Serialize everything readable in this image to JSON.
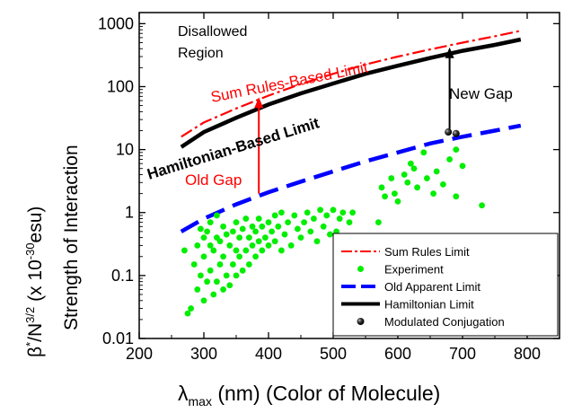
{
  "chart_data": {
    "type": "scatter",
    "xlabel_sym": "λ",
    "xlabel_sub": "max",
    "xlabel_rest": " (nm) (Color of Molecule)",
    "ylabel_line1_a": "β",
    "ylabel_line1_sup1": "*",
    "ylabel_line1_b": "/N",
    "ylabel_line1_sup2": "3/2",
    "ylabel_line1_c": " (x 10",
    "ylabel_line1_sup3": "-30",
    "ylabel_line1_d": "esu)",
    "ylabel_line2": "Strength of Interaction",
    "x_ticks": [
      "200",
      "300",
      "400",
      "500",
      "600",
      "700",
      "800"
    ],
    "y_ticks": [
      "0.01",
      "0.1",
      "1",
      "10",
      "100",
      "1000"
    ],
    "xlim": [
      200,
      850
    ],
    "ylim": [
      0.01,
      1500
    ],
    "y_scale": "log",
    "annotations": {
      "disallowed_1": "Disallowed",
      "disallowed_2": "Region",
      "sum_rules_limit": "Sum Rules-Based Limit",
      "hamiltonian_limit": "Hamiltonian-Based Limit",
      "new_gap": "New Gap",
      "old_gap": "Old Gap"
    },
    "legend": {
      "position": "bottom-right",
      "entries": [
        {
          "label": "Sum Rules Limit",
          "style": "dashdot",
          "color": "#ff0000"
        },
        {
          "label": "Experiment",
          "style": "dot",
          "color": "#00ee00"
        },
        {
          "label": "Old Apparent Limit",
          "style": "dash",
          "color": "#0000ff"
        },
        {
          "label": "Hamiltonian Limit",
          "style": "solid",
          "color": "#000000"
        },
        {
          "label": "Modulated Conjugation",
          "style": "ball",
          "color": "#000000"
        }
      ]
    },
    "series": [
      {
        "key": "sum_rules",
        "color": "#ff0000",
        "x": [
          265,
          300,
          350,
          400,
          450,
          500,
          550,
          600,
          650,
          700,
          750,
          790
        ],
        "values": [
          16,
          27,
          45,
          72,
          110,
          160,
          225,
          300,
          390,
          500,
          630,
          770
        ]
      },
      {
        "key": "hamiltonian",
        "color": "#000000",
        "x": [
          265,
          300,
          350,
          400,
          450,
          500,
          550,
          600,
          650,
          700,
          750,
          790
        ],
        "values": [
          11,
          19,
          32,
          52,
          78,
          112,
          160,
          215,
          285,
          370,
          460,
          560
        ]
      },
      {
        "key": "old_apparent",
        "color": "#0000ff",
        "x": [
          265,
          300,
          350,
          400,
          450,
          500,
          550,
          600,
          650,
          700,
          750,
          790
        ],
        "values": [
          0.5,
          0.8,
          1.35,
          2.1,
          3.1,
          4.5,
          6.5,
          9.0,
          12.5,
          16.0,
          20.0,
          24.0
        ]
      },
      {
        "key": "experiment",
        "color": "#00ee00",
        "x": [
          270,
          275,
          280,
          285,
          290,
          290,
          295,
          295,
          300,
          300,
          300,
          305,
          305,
          310,
          310,
          310,
          315,
          315,
          320,
          320,
          320,
          325,
          325,
          330,
          330,
          330,
          335,
          335,
          340,
          340,
          345,
          345,
          350,
          350,
          350,
          355,
          355,
          360,
          360,
          365,
          365,
          370,
          370,
          375,
          375,
          380,
          380,
          385,
          385,
          390,
          390,
          395,
          400,
          400,
          405,
          410,
          410,
          415,
          420,
          420,
          425,
          430,
          435,
          440,
          445,
          450,
          455,
          460,
          465,
          470,
          475,
          480,
          485,
          490,
          495,
          500,
          505,
          510,
          515,
          520,
          525,
          530,
          570,
          575,
          580,
          590,
          595,
          600,
          610,
          615,
          620,
          625,
          630,
          640,
          645,
          655,
          660,
          670,
          680,
          690,
          690,
          700,
          730
        ],
        "values": [
          0.25,
          0.025,
          0.03,
          0.15,
          0.06,
          0.3,
          0.1,
          0.55,
          0.04,
          0.2,
          0.4,
          0.08,
          0.5,
          0.12,
          0.3,
          0.7,
          0.05,
          0.25,
          0.08,
          0.4,
          0.9,
          0.15,
          0.35,
          0.06,
          0.2,
          0.6,
          0.1,
          0.45,
          0.07,
          0.3,
          0.15,
          0.5,
          0.1,
          0.25,
          0.7,
          0.2,
          0.4,
          0.12,
          0.55,
          0.25,
          0.8,
          0.15,
          0.4,
          0.3,
          0.6,
          0.2,
          0.5,
          0.35,
          0.8,
          0.25,
          0.6,
          0.4,
          0.3,
          0.7,
          0.5,
          0.35,
          0.9,
          0.6,
          0.25,
          1.0,
          0.45,
          0.7,
          0.3,
          0.9,
          0.55,
          0.4,
          0.7,
          1.0,
          0.5,
          0.8,
          0.35,
          1.1,
          0.6,
          0.9,
          0.45,
          1.1,
          0.5,
          0.8,
          1.0,
          0.4,
          0.7,
          1.0,
          0.7,
          2.5,
          1.8,
          3.5,
          2.0,
          1.5,
          4.0,
          3.0,
          6.0,
          5.0,
          2.5,
          9.0,
          3.5,
          2.0,
          4.5,
          2.8,
          7.0,
          1.8,
          10.0,
          5.5,
          1.3
        ]
      },
      {
        "key": "modulated",
        "color": "#000000",
        "x": [
          678,
          690
        ],
        "values": [
          19,
          18
        ]
      }
    ],
    "arrows": [
      {
        "key": "new_gap",
        "x": 680,
        "from": 19,
        "to": 420,
        "color": "#000000"
      },
      {
        "key": "old_gap",
        "x": 385,
        "from": 2,
        "to": 68,
        "color": "#ff0000"
      }
    ]
  }
}
